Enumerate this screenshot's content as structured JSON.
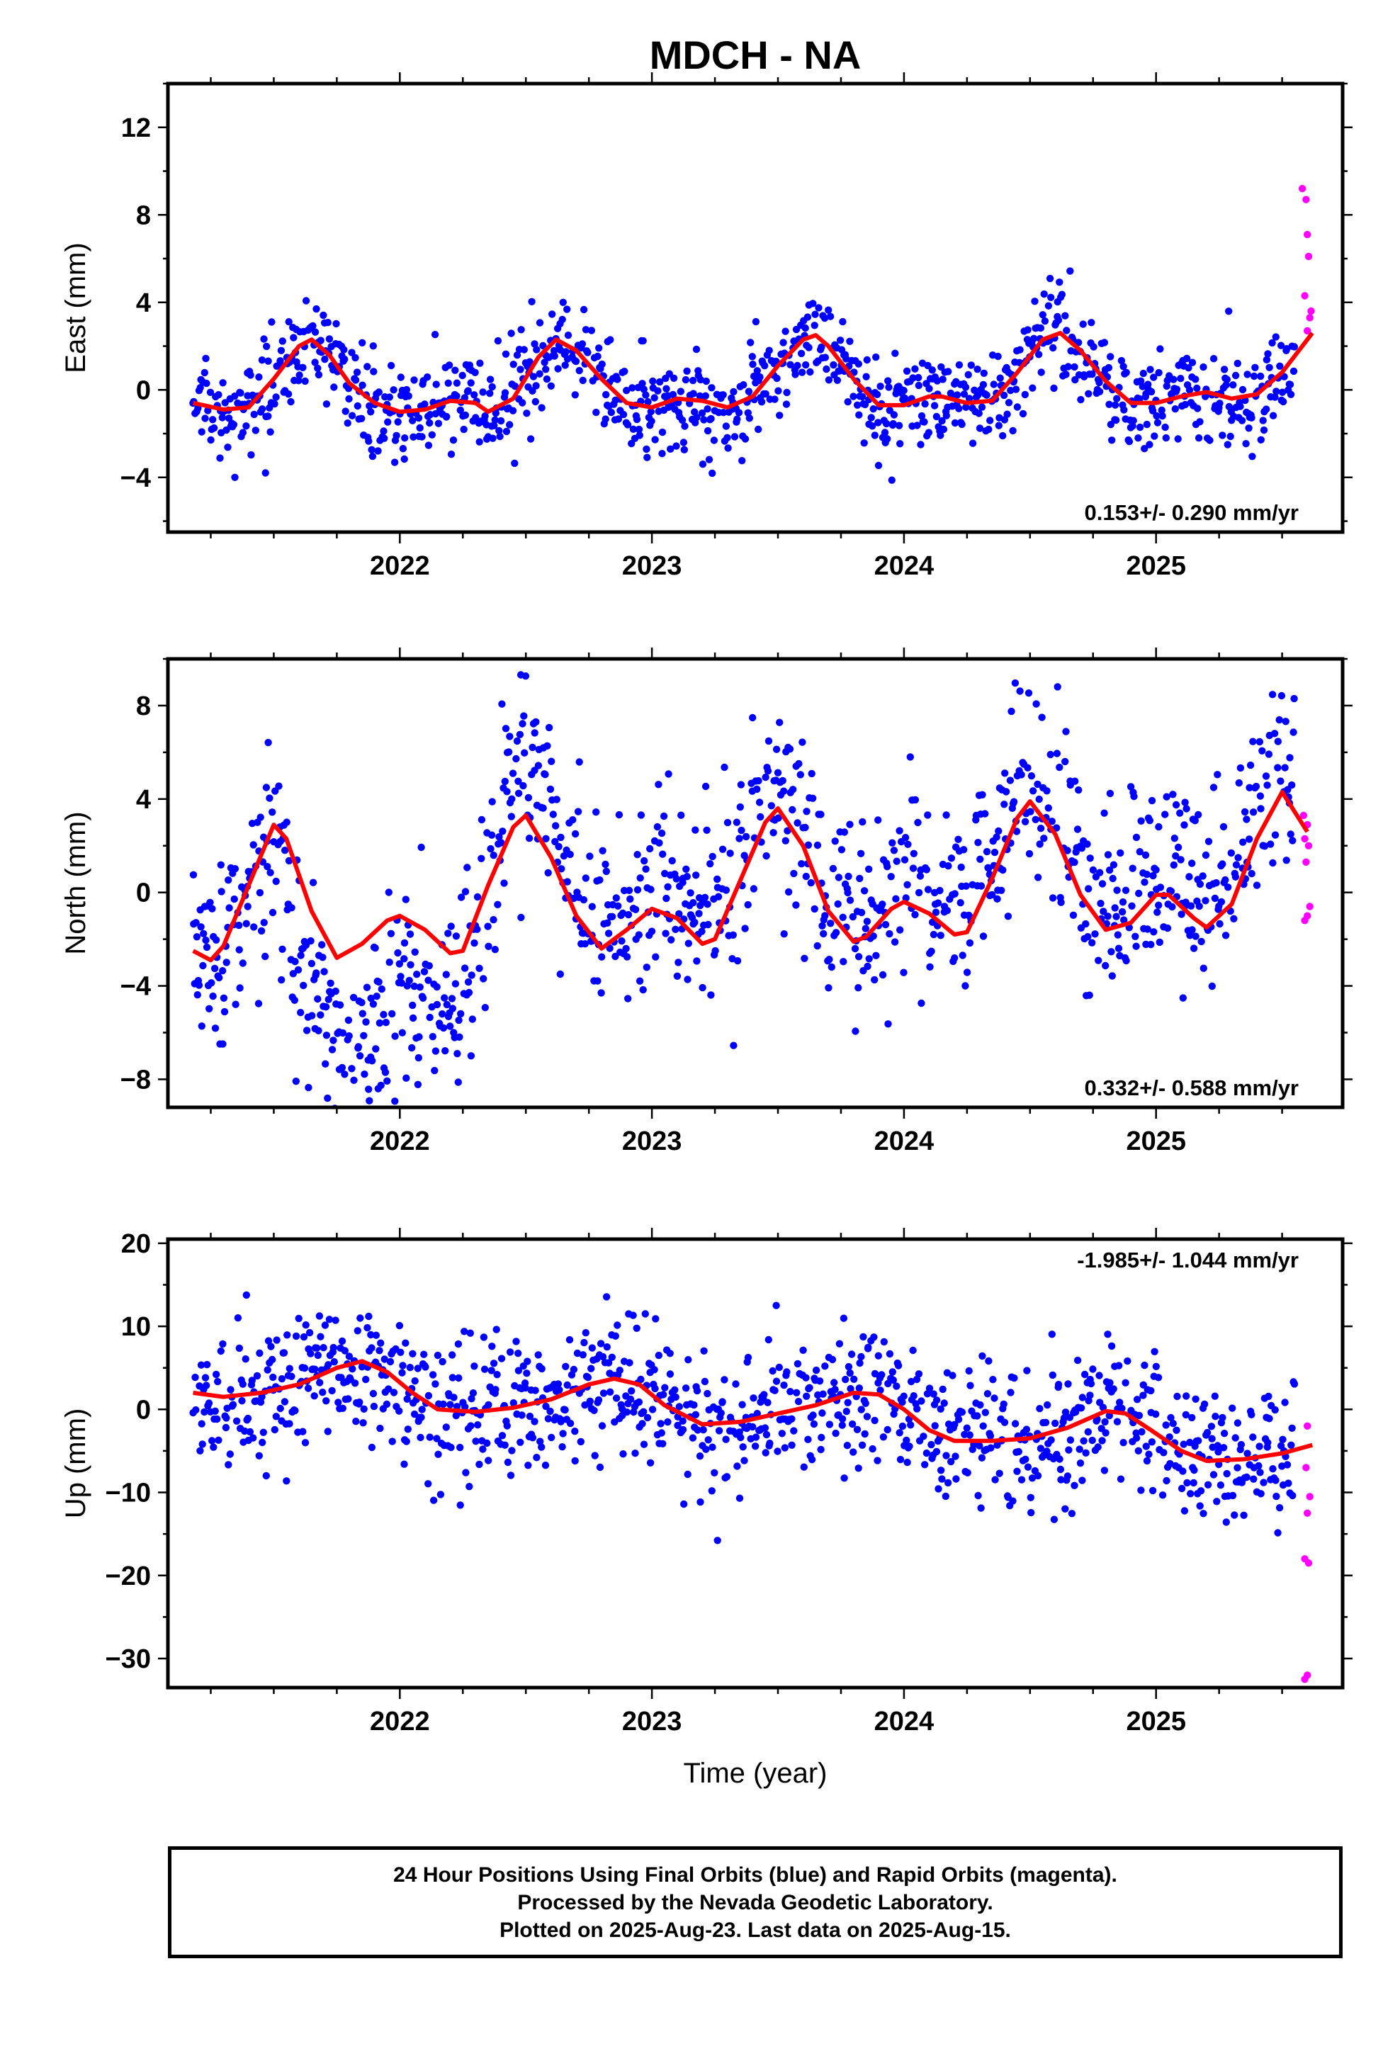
{
  "title": "MDCH - NA",
  "xlabel": "Time (year)",
  "colors": {
    "final": "#0000ff",
    "rapid": "#ff00ff",
    "fit": "#ff0000"
  },
  "footer": {
    "line1": "24 Hour Positions Using Final Orbits (blue) and Rapid Orbits (magenta).",
    "line2": "Processed by the Nevada Geodetic Laboratory.",
    "line3": "Plotted on 2025-Aug-23. Last data on 2025-Aug-15."
  },
  "chart_data": [
    {
      "type": "scatter",
      "name": "east",
      "ylabel": "East (mm)",
      "rate": "0.153+/- 0.290 mm/yr",
      "rate_position": "bottom-right",
      "xlim": [
        2021.08,
        2025.74
      ],
      "ylim": [
        -6.5,
        14
      ],
      "xticks": [
        2022,
        2023,
        2024,
        2025
      ],
      "yticks": [
        -4,
        0,
        4,
        8,
        12
      ],
      "fit": [
        [
          2021.18,
          -0.6
        ],
        [
          2021.3,
          -0.9
        ],
        [
          2021.4,
          -0.8
        ],
        [
          2021.5,
          0.5
        ],
        [
          2021.6,
          2.0
        ],
        [
          2021.65,
          2.3
        ],
        [
          2021.72,
          1.6
        ],
        [
          2021.8,
          0.3
        ],
        [
          2021.9,
          -0.6
        ],
        [
          2022.0,
          -1.0
        ],
        [
          2022.1,
          -0.9
        ],
        [
          2022.2,
          -0.5
        ],
        [
          2022.3,
          -0.6
        ],
        [
          2022.35,
          -1.0
        ],
        [
          2022.45,
          -0.4
        ],
        [
          2022.55,
          1.5
        ],
        [
          2022.62,
          2.3
        ],
        [
          2022.7,
          1.8
        ],
        [
          2022.8,
          0.5
        ],
        [
          2022.9,
          -0.6
        ],
        [
          2023.0,
          -0.8
        ],
        [
          2023.1,
          -0.4
        ],
        [
          2023.2,
          -0.5
        ],
        [
          2023.3,
          -0.8
        ],
        [
          2023.4,
          -0.3
        ],
        [
          2023.5,
          1.1
        ],
        [
          2023.6,
          2.3
        ],
        [
          2023.65,
          2.5
        ],
        [
          2023.7,
          2.0
        ],
        [
          2023.8,
          0.5
        ],
        [
          2023.9,
          -0.7
        ],
        [
          2024.0,
          -0.7
        ],
        [
          2024.1,
          -0.3
        ],
        [
          2024.15,
          -0.3
        ],
        [
          2024.25,
          -0.6
        ],
        [
          2024.35,
          -0.5
        ],
        [
          2024.45,
          0.8
        ],
        [
          2024.55,
          2.3
        ],
        [
          2024.62,
          2.6
        ],
        [
          2024.7,
          1.8
        ],
        [
          2024.8,
          0.4
        ],
        [
          2024.9,
          -0.6
        ],
        [
          2025.0,
          -0.6
        ],
        [
          2025.1,
          -0.3
        ],
        [
          2025.2,
          -0.1
        ],
        [
          2025.3,
          -0.4
        ],
        [
          2025.4,
          -0.2
        ],
        [
          2025.5,
          0.8
        ],
        [
          2025.6,
          2.3
        ],
        [
          2025.62,
          2.6
        ]
      ],
      "rapid": [
        [
          2025.58,
          9.2
        ],
        [
          2025.595,
          8.7
        ],
        [
          2025.6,
          7.1
        ],
        [
          2025.605,
          6.1
        ],
        [
          2025.59,
          4.3
        ],
        [
          2025.61,
          3.3
        ],
        [
          2025.6,
          2.7
        ],
        [
          2025.615,
          3.6
        ]
      ]
    },
    {
      "type": "scatter",
      "name": "north",
      "ylabel": "North (mm)",
      "rate": "0.332+/- 0.588 mm/yr",
      "rate_position": "bottom-right",
      "xlim": [
        2021.08,
        2025.74
      ],
      "ylim": [
        -9.2,
        10
      ],
      "xticks": [
        2022,
        2023,
        2024,
        2025
      ],
      "yticks": [
        -8,
        -4,
        0,
        4,
        8
      ],
      "fit": [
        [
          2021.18,
          -2.5
        ],
        [
          2021.25,
          -2.9
        ],
        [
          2021.3,
          -2.3
        ],
        [
          2021.4,
          0.3
        ],
        [
          2021.5,
          2.9
        ],
        [
          2021.55,
          2.3
        ],
        [
          2021.65,
          -0.8
        ],
        [
          2021.75,
          -2.8
        ],
        [
          2021.85,
          -2.2
        ],
        [
          2021.95,
          -1.2
        ],
        [
          2022.0,
          -1.0
        ],
        [
          2022.1,
          -1.6
        ],
        [
          2022.2,
          -2.6
        ],
        [
          2022.25,
          -2.5
        ],
        [
          2022.35,
          0.3
        ],
        [
          2022.45,
          2.8
        ],
        [
          2022.5,
          3.3
        ],
        [
          2022.6,
          1.5
        ],
        [
          2022.7,
          -1.0
        ],
        [
          2022.8,
          -2.4
        ],
        [
          2022.9,
          -1.6
        ],
        [
          2023.0,
          -0.7
        ],
        [
          2023.1,
          -1.1
        ],
        [
          2023.2,
          -2.2
        ],
        [
          2023.25,
          -2.0
        ],
        [
          2023.35,
          0.5
        ],
        [
          2023.45,
          3.0
        ],
        [
          2023.5,
          3.6
        ],
        [
          2023.6,
          2.0
        ],
        [
          2023.7,
          -0.8
        ],
        [
          2023.8,
          -2.1
        ],
        [
          2023.85,
          -1.9
        ],
        [
          2023.95,
          -0.7
        ],
        [
          2024.0,
          -0.4
        ],
        [
          2024.1,
          -0.9
        ],
        [
          2024.2,
          -1.8
        ],
        [
          2024.25,
          -1.7
        ],
        [
          2024.35,
          0.6
        ],
        [
          2024.45,
          3.2
        ],
        [
          2024.5,
          3.9
        ],
        [
          2024.6,
          2.5
        ],
        [
          2024.7,
          -0.1
        ],
        [
          2024.8,
          -1.6
        ],
        [
          2024.9,
          -1.3
        ],
        [
          2025.0,
          -0.1
        ],
        [
          2025.05,
          -0.1
        ],
        [
          2025.15,
          -1.1
        ],
        [
          2025.2,
          -1.5
        ],
        [
          2025.3,
          -0.5
        ],
        [
          2025.4,
          2.3
        ],
        [
          2025.5,
          4.3
        ],
        [
          2025.6,
          2.6
        ]
      ],
      "rapid": [
        [
          2025.585,
          3.3
        ],
        [
          2025.6,
          2.9
        ],
        [
          2025.59,
          2.3
        ],
        [
          2025.605,
          2.0
        ],
        [
          2025.595,
          1.3
        ],
        [
          2025.61,
          -0.6
        ],
        [
          2025.59,
          -1.2
        ],
        [
          2025.6,
          -1.0
        ]
      ]
    },
    {
      "type": "scatter",
      "name": "up",
      "ylabel": "Up (mm)",
      "rate": "-1.985+/- 1.044 mm/yr",
      "rate_position": "top-right",
      "xlim": [
        2021.08,
        2025.74
      ],
      "ylim": [
        -33.5,
        20.5
      ],
      "xticks": [
        2022,
        2023,
        2024,
        2025
      ],
      "yticks": [
        -30,
        -20,
        -10,
        0,
        10,
        20
      ],
      "fit": [
        [
          2021.18,
          2.0
        ],
        [
          2021.3,
          1.5
        ],
        [
          2021.45,
          2.0
        ],
        [
          2021.6,
          3.0
        ],
        [
          2021.75,
          5.0
        ],
        [
          2021.85,
          5.8
        ],
        [
          2021.95,
          4.5
        ],
        [
          2022.05,
          2.0
        ],
        [
          2022.15,
          0.0
        ],
        [
          2022.3,
          -0.3
        ],
        [
          2022.45,
          0.2
        ],
        [
          2022.6,
          1.2
        ],
        [
          2022.75,
          3.0
        ],
        [
          2022.85,
          3.7
        ],
        [
          2022.95,
          3.0
        ],
        [
          2023.05,
          0.5
        ],
        [
          2023.2,
          -1.8
        ],
        [
          2023.35,
          -1.5
        ],
        [
          2023.5,
          -0.5
        ],
        [
          2023.65,
          0.5
        ],
        [
          2023.8,
          2.0
        ],
        [
          2023.9,
          1.8
        ],
        [
          2024.0,
          0.0
        ],
        [
          2024.1,
          -2.5
        ],
        [
          2024.2,
          -3.8
        ],
        [
          2024.35,
          -3.8
        ],
        [
          2024.5,
          -3.5
        ],
        [
          2024.65,
          -2.2
        ],
        [
          2024.8,
          -0.2
        ],
        [
          2024.88,
          -0.5
        ],
        [
          2024.98,
          -2.5
        ],
        [
          2025.1,
          -5.0
        ],
        [
          2025.2,
          -6.2
        ],
        [
          2025.35,
          -6.0
        ],
        [
          2025.5,
          -5.3
        ],
        [
          2025.62,
          -4.3
        ]
      ],
      "rapid": [
        [
          2025.6,
          -2.0
        ],
        [
          2025.595,
          -7.0
        ],
        [
          2025.61,
          -10.5
        ],
        [
          2025.6,
          -12.5
        ],
        [
          2025.59,
          -18.0
        ],
        [
          2025.605,
          -18.5
        ],
        [
          2025.6,
          -32.0
        ],
        [
          2025.59,
          -32.5
        ]
      ]
    }
  ]
}
